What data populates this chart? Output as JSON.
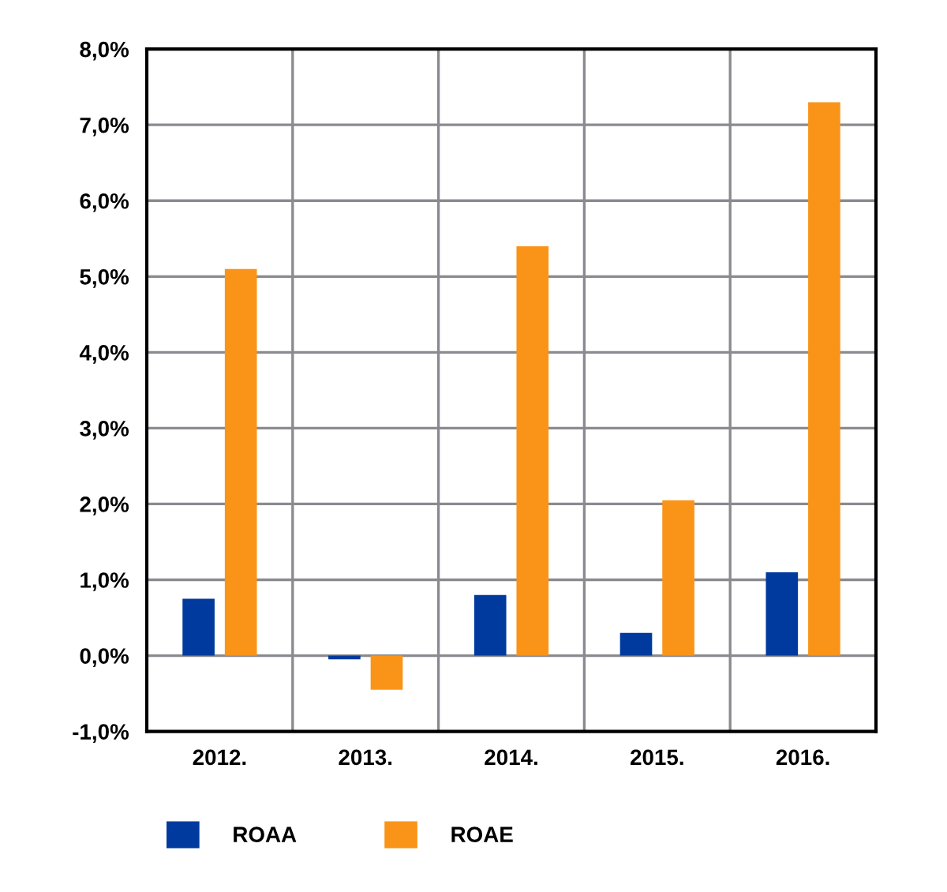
{
  "chart_data": {
    "type": "bar",
    "categories": [
      "2012.",
      "2013.",
      "2014.",
      "2015.",
      "2016."
    ],
    "series": [
      {
        "name": "ROAA",
        "color": "#003a9e",
        "values": [
          0.75,
          -0.05,
          0.8,
          0.3,
          1.1
        ]
      },
      {
        "name": "ROAE",
        "color": "#fa9419",
        "values": [
          5.1,
          -0.45,
          5.4,
          2.05,
          7.3
        ]
      }
    ],
    "ylim": [
      -1,
      8
    ],
    "yticks": [
      {
        "value": -1,
        "label": "-1,0%"
      },
      {
        "value": 0,
        "label": "0,0%"
      },
      {
        "value": 1,
        "label": "1,0%"
      },
      {
        "value": 2,
        "label": "2,0%"
      },
      {
        "value": 3,
        "label": "3,0%"
      },
      {
        "value": 4,
        "label": "4,0%"
      },
      {
        "value": 5,
        "label": "5,0%"
      },
      {
        "value": 6,
        "label": "6,0%"
      },
      {
        "value": 7,
        "label": "7,0%"
      },
      {
        "value": 8,
        "label": "8,0%"
      }
    ],
    "grid": true,
    "legend": "bottom"
  }
}
